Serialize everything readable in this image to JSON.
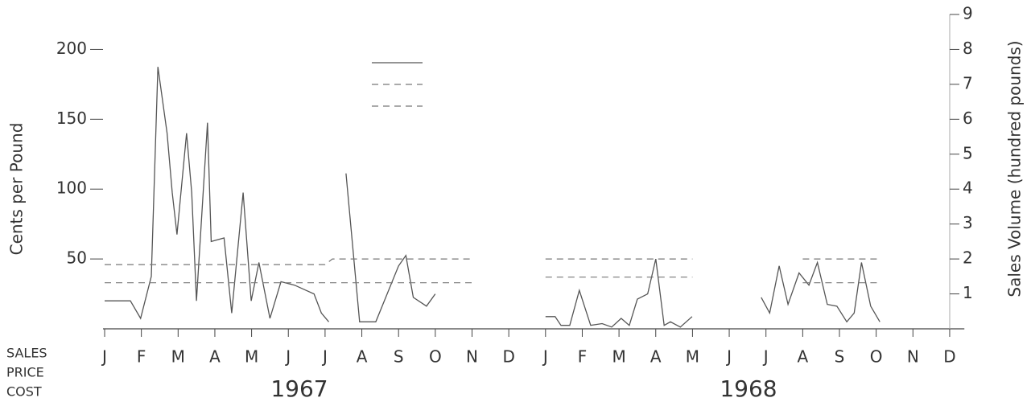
{
  "chart_data": {
    "type": "line",
    "y_label": "Cents per Pound",
    "y2_label": "Sales Volume (hundred pounds)",
    "annotations": [
      "1967",
      "1968"
    ],
    "xlim": [
      -0.1,
      23.4
    ],
    "xticks": [
      {
        "value": 0,
        "label": "J"
      },
      {
        "value": 1,
        "label": "F"
      },
      {
        "value": 2,
        "label": "M"
      },
      {
        "value": 3,
        "label": "A"
      },
      {
        "value": 4,
        "label": "M"
      },
      {
        "value": 5,
        "label": "J"
      },
      {
        "value": 6,
        "label": "J"
      },
      {
        "value": 7,
        "label": "A"
      },
      {
        "value": 8,
        "label": "S"
      },
      {
        "value": 9,
        "label": "O"
      },
      {
        "value": 10,
        "label": "N"
      },
      {
        "value": 11,
        "label": "D"
      },
      {
        "value": 12,
        "label": "J"
      },
      {
        "value": 13,
        "label": "F"
      },
      {
        "value": 14,
        "label": "M"
      },
      {
        "value": 15,
        "label": "A"
      },
      {
        "value": 16,
        "label": "M"
      },
      {
        "value": 17,
        "label": "J"
      },
      {
        "value": 18,
        "label": "J"
      },
      {
        "value": 19,
        "label": "A"
      },
      {
        "value": 20,
        "label": "S"
      },
      {
        "value": 21,
        "label": "O"
      },
      {
        "value": 22,
        "label": "N"
      },
      {
        "value": 23,
        "label": "D"
      }
    ],
    "ylim": [
      0,
      225
    ],
    "yticks": [
      50,
      100,
      150,
      200
    ],
    "y2lim": [
      0,
      9
    ],
    "y2ticks": [
      1,
      2,
      3,
      4,
      5,
      6,
      7,
      8,
      9
    ],
    "series": [
      {
        "name": "SALES",
        "color": "#555555",
        "dash": false,
        "axis": "y2",
        "x": [
          0,
          0.7,
          0.98,
          1.27,
          1.45,
          1.7,
          1.84,
          1.97,
          2.23,
          2.37,
          2.5,
          2.8,
          2.9,
          3.25,
          3.46,
          3.77,
          3.99,
          4.2,
          4.5,
          4.8,
          5.17,
          5.7,
          5.9,
          6.1,
          6.3,
          6.57,
          6.94,
          7.38,
          8.0,
          8.2,
          8.4,
          8.76,
          9.0,
          11,
          12.0,
          12.26,
          12.42,
          12.66,
          12.92,
          13.23,
          13.54,
          13.8,
          14.06,
          14.28,
          14.5,
          14.78,
          15.0,
          15.23,
          15.4,
          15.67,
          15.99,
          17,
          17.87,
          18.1,
          18.36,
          18.6,
          18.9,
          19.17,
          19.4,
          19.67,
          19.93,
          20.2,
          20.4,
          20.6,
          20.85,
          21.1
        ],
        "values": [
          0.8,
          0.8,
          0.3,
          1.5,
          7.5,
          5.6,
          3.9,
          2.7,
          5.6,
          3.9,
          0.8,
          5.9,
          2.5,
          2.6,
          0.45,
          3.9,
          0.8,
          1.9,
          0.3,
          1.35,
          1.25,
          1.0,
          0.45,
          0.2,
          null,
          4.45,
          0.2,
          0.2,
          1.8,
          2.1,
          0.9,
          0.65,
          1.0,
          null,
          0.35,
          0.35,
          0.1,
          0.1,
          1.1,
          0.1,
          0.15,
          0.05,
          0.3,
          0.1,
          0.85,
          1.0,
          2.0,
          0.1,
          0.2,
          0.05,
          0.35,
          null,
          0.9,
          0.45,
          1.8,
          0.7,
          1.6,
          1.25,
          1.9,
          0.7,
          0.65,
          0.2,
          0.45,
          1.9,
          0.65,
          0.2
        ]
      },
      {
        "name": "PRICE",
        "color": "#777777",
        "dash": true,
        "axis": "y",
        "x": [
          0,
          6,
          6.2,
          10,
          11,
          12,
          16,
          17,
          19,
          21.1
        ],
        "values": [
          46,
          46,
          50,
          50,
          null,
          50,
          50,
          null,
          50,
          50
        ]
      },
      {
        "name": "COST",
        "color": "#777777",
        "dash": true,
        "axis": "y",
        "x": [
          0,
          10,
          11,
          12,
          16,
          17,
          19,
          21.1
        ],
        "values": [
          33,
          33,
          null,
          37,
          37,
          null,
          33,
          33
        ]
      }
    ]
  }
}
